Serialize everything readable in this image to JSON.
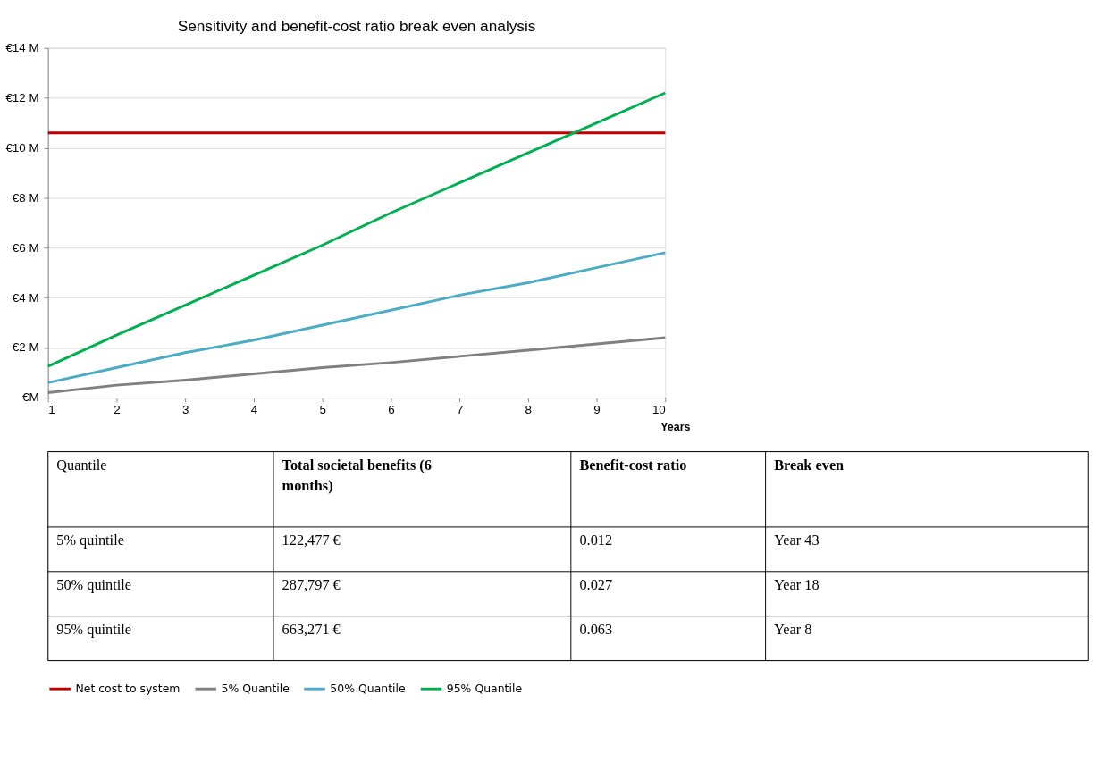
{
  "chart_data": [
    {
      "type": "line",
      "title": "Sensitivity and benefit-cost ratio break even analysis",
      "xlabel": "Years",
      "x": [
        1,
        2,
        3,
        4,
        5,
        6,
        7,
        8,
        9,
        10
      ],
      "series": [
        {
          "name": "Net cost to system",
          "color": "#c00000",
          "values": [
            10.6,
            10.6,
            10.6,
            10.6,
            10.6,
            10.6,
            10.6,
            10.6,
            10.6,
            10.6
          ]
        },
        {
          "name": "5% Quantile",
          "color": "#808080",
          "values": [
            0.2,
            0.5,
            0.7,
            0.95,
            1.2,
            1.4,
            1.65,
            1.9,
            2.15,
            2.4
          ]
        },
        {
          "name": "50% Quantile",
          "color": "#4bacc6",
          "values": [
            0.6,
            1.2,
            1.8,
            2.3,
            2.9,
            3.5,
            4.1,
            4.6,
            5.2,
            5.8
          ]
        },
        {
          "name": "95% Quantile",
          "color": "#00b050",
          "values": [
            1.25,
            2.5,
            3.7,
            4.9,
            6.1,
            7.4,
            8.6,
            9.8,
            11.0,
            12.2
          ]
        }
      ],
      "xlim": [
        1,
        10
      ],
      "xticks": [
        1,
        2,
        3,
        4,
        5,
        6,
        7,
        8,
        9,
        10
      ],
      "ylim": [
        0,
        14
      ],
      "yticks": [
        {
          "value": 0,
          "label": "€M"
        },
        {
          "value": 2,
          "label": "€2 M"
        },
        {
          "value": 4,
          "label": "€4 M"
        },
        {
          "value": 6,
          "label": "€6 M"
        },
        {
          "value": 8,
          "label": "€8 M"
        },
        {
          "value": 10,
          "label": "€10 M"
        },
        {
          "value": 12,
          "label": "€12 M"
        },
        {
          "value": 14,
          "label": "€14 M"
        }
      ],
      "grid": "y",
      "legend": "bottom",
      "marker": "none",
      "line_style": "solid"
    },
    {
      "type": "other",
      "categories": [
        "Quantile",
        "Total societal benefits (6 months)",
        "Benefit-cost ratio",
        "Break even"
      ],
      "annotations": [
        "5% quintile",
        "122,477 €",
        "0.012",
        "Year 43",
        "50% quintile",
        "287,797 €",
        "0.027",
        "Year 18",
        "95% quintile",
        "663,271 €",
        "0.063",
        "Year 8"
      ]
    }
  ]
}
